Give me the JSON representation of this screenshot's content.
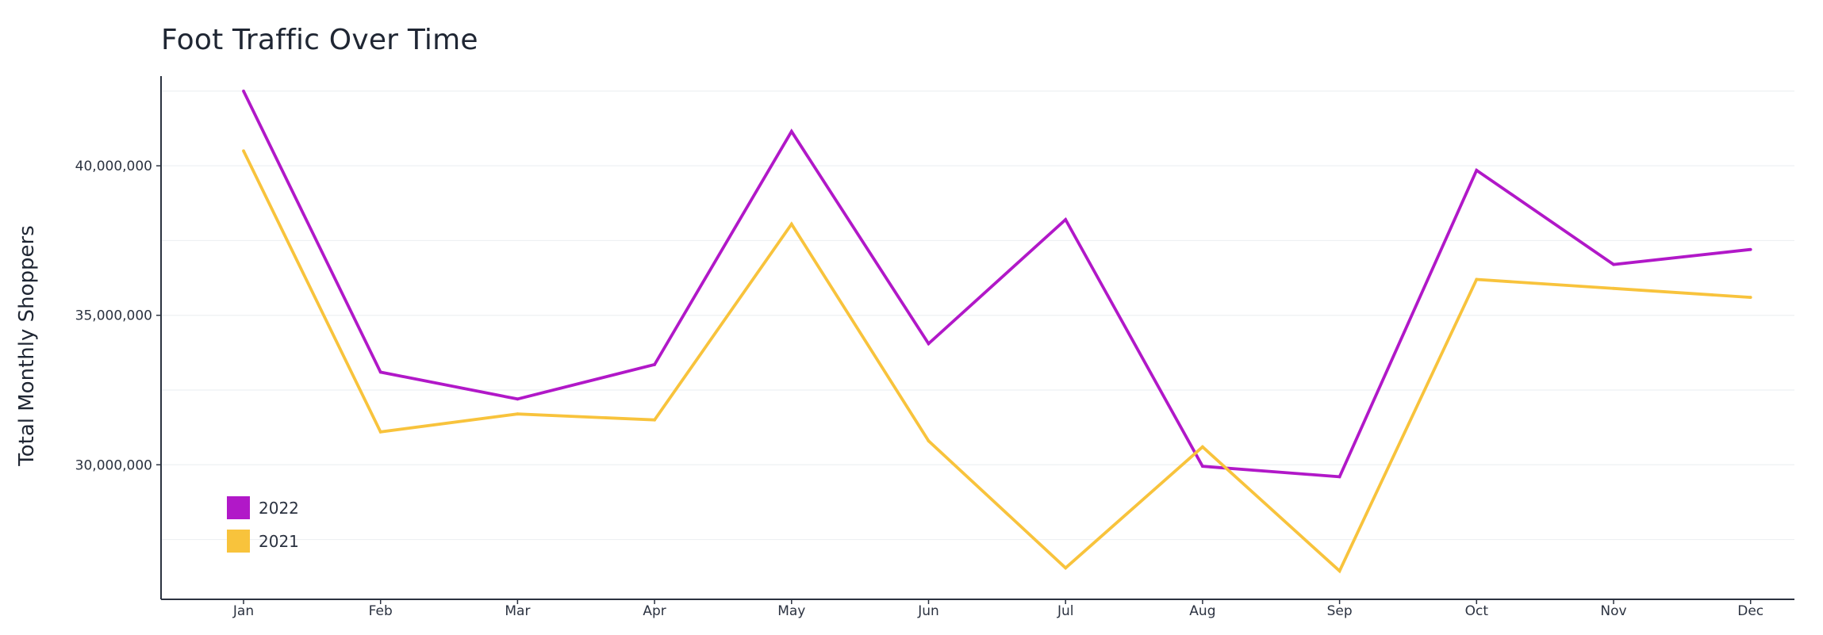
{
  "chart_data": {
    "type": "line",
    "title": "Foot Traffic Over Time",
    "xlabel": "",
    "ylabel": "Total Monthly Shoppers",
    "categories": [
      "Jan",
      "Feb",
      "Mar",
      "Apr",
      "May",
      "Jun",
      "Jul",
      "Aug",
      "Sep",
      "Oct",
      "Nov",
      "Dec"
    ],
    "ylim": [
      25500000,
      43000000
    ],
    "yticks": [
      30000000,
      35000000,
      40000000
    ],
    "ytick_labels": [
      "30,000,000",
      "35,000,000",
      "40,000,000"
    ],
    "minor_grid": [
      27500000,
      32500000,
      37500000,
      42500000
    ],
    "grid": true,
    "legend_position": "bottom-left",
    "series": [
      {
        "name": "2022",
        "color": "#b118c8",
        "values": [
          42500000,
          33100000,
          32200000,
          33350000,
          41150000,
          34050000,
          38200000,
          29950000,
          29600000,
          39850000,
          36700000,
          37200000
        ]
      },
      {
        "name": "2021",
        "color": "#f8c33c",
        "values": [
          40500000,
          31100000,
          31700000,
          31500000,
          38050000,
          30800000,
          26550000,
          30600000,
          26450000,
          36200000,
          35900000,
          35600000
        ]
      }
    ]
  }
}
